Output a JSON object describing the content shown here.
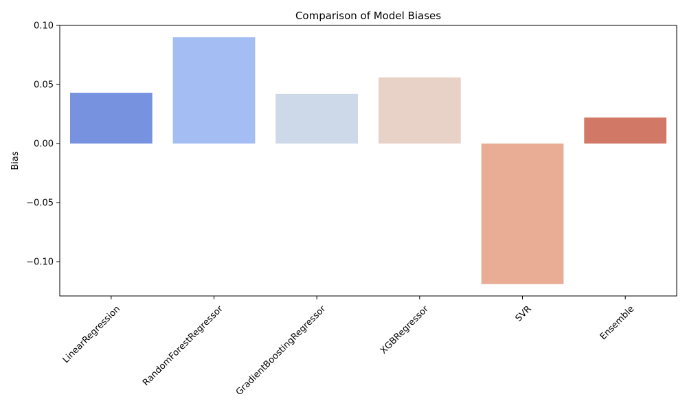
{
  "chart_data": {
    "type": "bar",
    "title": "Comparison of Model Biases",
    "xlabel": "",
    "ylabel": "Bias",
    "categories": [
      "LinearRegression",
      "RandomForestRegressor",
      "GradientBoostingRegressor",
      "XGBRegressor",
      "SVR",
      "Ensemble"
    ],
    "values": [
      0.043,
      0.09,
      0.042,
      0.056,
      -0.119,
      0.022
    ],
    "colors": [
      "#7793e0",
      "#a4bdf2",
      "#cdd8e9",
      "#e8d2c8",
      "#e9ad95",
      "#d27866"
    ],
    "ylim": [
      -0.129,
      0.1
    ],
    "yticks": [
      -0.1,
      -0.05,
      0.0,
      0.05,
      0.1
    ],
    "ytick_labels": [
      "−0.10",
      "−0.05",
      "0.00",
      "0.05",
      "0.10"
    ],
    "grid": false,
    "xtick_rotation": 45
  }
}
